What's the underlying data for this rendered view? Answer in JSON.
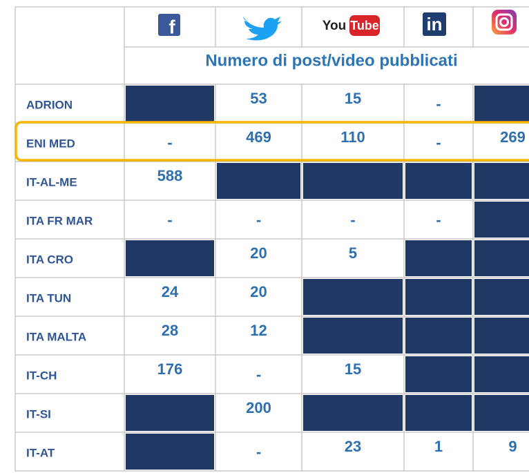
{
  "header": {
    "icons": {
      "facebook": "f",
      "youtube": [
        "You",
        "Tube"
      ],
      "linkedin": "in"
    },
    "subtitle": "Numero di post/video pubblicati"
  },
  "table": {
    "cell_color": "#1f3864",
    "rows": [
      {
        "label": "ADRION",
        "cells": [
          null,
          53,
          15,
          "-",
          null
        ]
      },
      {
        "label": "ENI MED",
        "cells": [
          "-",
          469,
          110,
          "-",
          269
        ]
      },
      {
        "label": "IT-AL-ME",
        "cells": [
          588,
          null,
          null,
          null,
          null
        ]
      },
      {
        "label": "ITA FR MAR",
        "cells": [
          "-",
          "-",
          "-",
          "-",
          null
        ]
      },
      {
        "label": "ITA CRO",
        "cells": [
          null,
          20,
          5,
          null,
          null
        ]
      },
      {
        "label": "ITA TUN",
        "cells": [
          24,
          20,
          null,
          null,
          null
        ]
      },
      {
        "label": "ITA MALTA",
        "cells": [
          28,
          12,
          null,
          null,
          null
        ]
      },
      {
        "label": "IT-CH",
        "cells": [
          176,
          "-",
          15,
          null,
          null
        ]
      },
      {
        "label": "IT-SI",
        "cells": [
          null,
          200,
          null,
          null,
          null
        ]
      },
      {
        "label": "IT-AT",
        "cells": [
          null,
          "-",
          23,
          1,
          9
        ]
      }
    ]
  }
}
